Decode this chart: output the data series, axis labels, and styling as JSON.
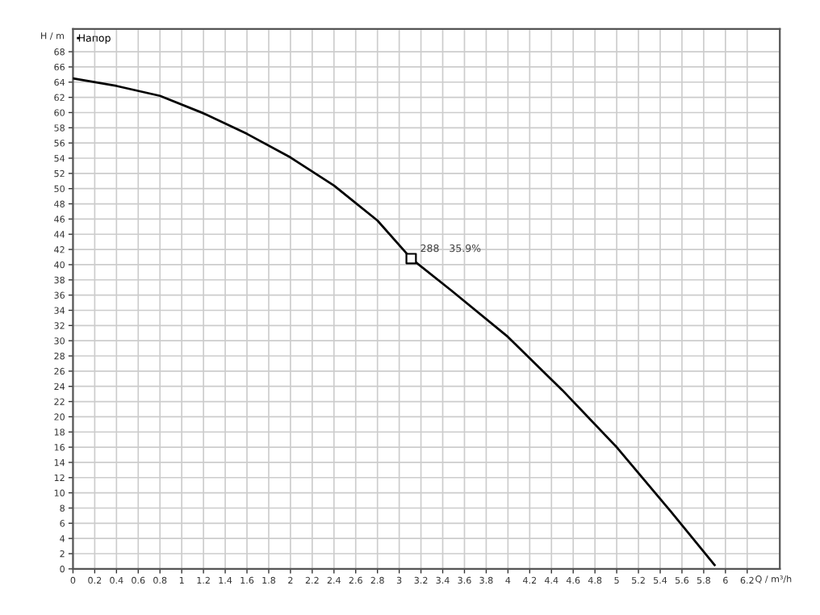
{
  "chart_data": {
    "type": "line",
    "series": [
      {
        "name": "Напор",
        "color": "#000000",
        "x": [
          0,
          0.4,
          0.8,
          1.2,
          1.6,
          2.0,
          2.4,
          2.8,
          3.11,
          3.48,
          4.0,
          4.5,
          5.0,
          5.5,
          5.9
        ],
        "values": [
          64.5,
          63.5,
          62.2,
          59.9,
          57.2,
          54.1,
          50.4,
          45.8,
          40.8,
          36.6,
          30.5,
          23.5,
          16,
          7.5,
          0.5
        ]
      },
      {
        "type": "scatter",
        "color": "#000000",
        "marker": "square",
        "x": [
          3.11
        ],
        "values": [
          40.8
        ]
      }
    ],
    "annotations": [
      {
        "text": "288   35.9%",
        "x": 3.11,
        "y": 40.8
      }
    ],
    "xlim": [
      0,
      6.5
    ],
    "xticks": [
      0,
      0.2,
      0.4,
      0.6,
      0.8,
      1,
      1.2,
      1.4,
      1.6,
      1.8,
      2,
      2.2,
      2.4,
      2.6,
      2.8,
      3,
      3.2,
      3.4,
      3.6,
      3.8,
      4,
      4.2,
      4.4,
      4.6,
      4.8,
      5,
      5.2,
      5.4,
      5.6,
      5.8,
      6,
      6.2
    ],
    "xlabel": "Q / m³/h",
    "ylabel": "H / m",
    "ylim": [
      0,
      71
    ],
    "yticks": [
      0,
      2,
      4,
      6,
      8,
      10,
      12,
      14,
      16,
      18,
      20,
      22,
      24,
      26,
      28,
      30,
      32,
      34,
      36,
      38,
      40,
      42,
      44,
      46,
      48,
      50,
      52,
      54,
      56,
      58,
      60,
      62,
      64,
      66,
      68
    ],
    "grid": true,
    "legend": "top left",
    "marker": "none",
    "line_style": "solid"
  }
}
